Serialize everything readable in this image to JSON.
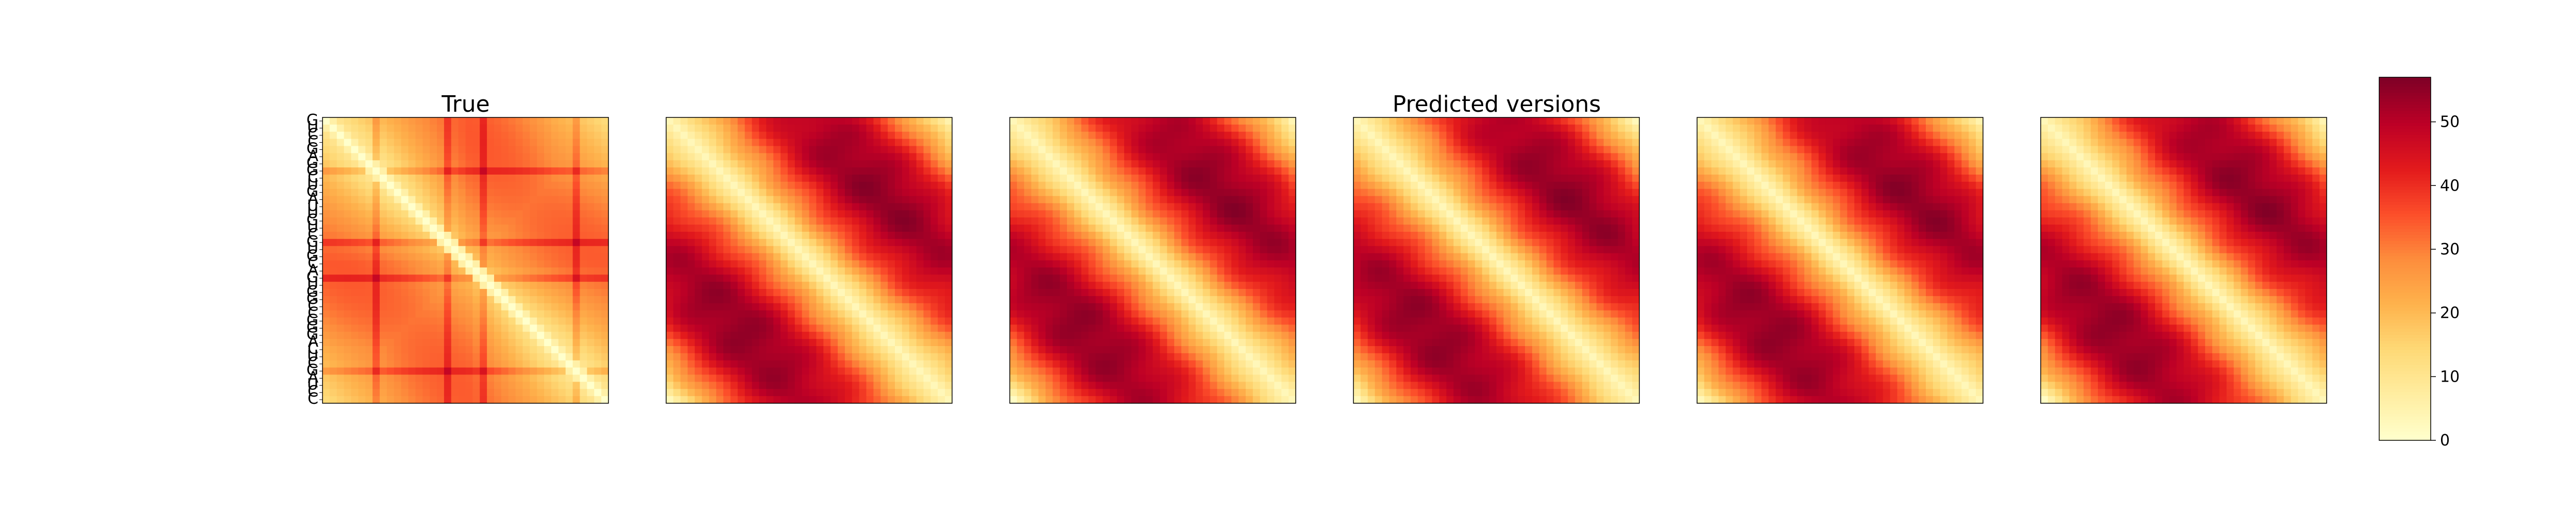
{
  "chart_data": {
    "type": "heatmap",
    "titles": {
      "left": "True",
      "center": "Predicted versions"
    },
    "panels": [
      {
        "name": "True"
      },
      {
        "name": ""
      },
      {
        "name": ""
      },
      {
        "name": ""
      },
      {
        "name": ""
      },
      {
        "name": ""
      }
    ],
    "matrix_size": 40,
    "y_tick_labels": [
      "G",
      "U",
      "C",
      "C",
      "G",
      "A",
      "G",
      "G",
      "C",
      "U",
      "G",
      "A",
      "U",
      "U",
      "G",
      "U",
      "C",
      "G",
      "U",
      "G",
      "C",
      "A",
      "G",
      "U",
      "G",
      "G",
      "C",
      "C",
      "G",
      "G",
      "G",
      "A",
      "C",
      "U",
      "C",
      "G",
      "A",
      "U",
      "C",
      "C"
    ],
    "colormap": [
      "#ffffcc",
      "#ffeda0",
      "#fed976",
      "#feb24c",
      "#fd8d3c",
      "#fc4e2a",
      "#e31a1c",
      "#bd0026",
      "#800026"
    ],
    "colorbar": {
      "min": 0,
      "max": 57,
      "ticks": [
        0,
        10,
        20,
        30,
        40,
        50
      ]
    }
  }
}
